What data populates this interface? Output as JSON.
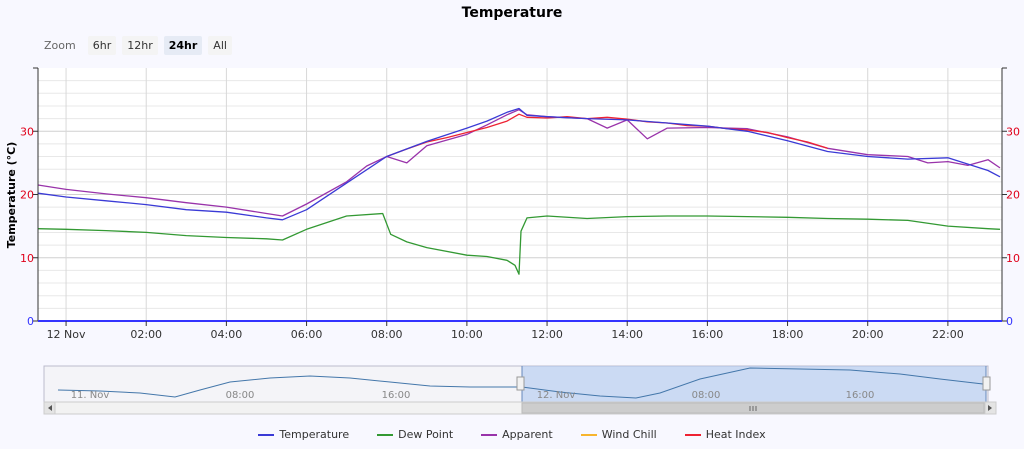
{
  "zoom": {
    "label": "Zoom",
    "buttons": [
      {
        "label": "6hr",
        "active": false
      },
      {
        "label": "12hr",
        "active": false
      },
      {
        "label": "24hr",
        "active": true
      },
      {
        "label": "All",
        "active": false
      }
    ]
  },
  "chart_data": {
    "type": "line",
    "title": "Temperature",
    "ylabel": "Temperature (°C)",
    "ylim": [
      0,
      40
    ],
    "yticks": [
      0,
      10,
      20,
      30
    ],
    "x_range": [
      "11/12 00:00",
      "11/12 23:20"
    ],
    "xticks": [
      "12 Nov",
      "02:00",
      "04:00",
      "06:00",
      "08:00",
      "10:00",
      "12:00",
      "14:00",
      "16:00",
      "18:00",
      "20:00",
      "22:00"
    ],
    "legend_position": "bottom",
    "series": [
      {
        "name": "Temperature",
        "color": "#3a3ad6",
        "x": [
          -0.7,
          0,
          1,
          2,
          3,
          4,
          5,
          5.4,
          6,
          7,
          8,
          9,
          10,
          10.5,
          11,
          11.3,
          11.5,
          12,
          13,
          14,
          15,
          16,
          17,
          18,
          19,
          20,
          21,
          22,
          23,
          23.3
        ],
        "y": [
          20.2,
          19.6,
          19,
          18.4,
          17.6,
          17.2,
          16.3,
          16,
          17.6,
          21.8,
          26,
          28.4,
          30.5,
          31.6,
          33,
          33.6,
          32.5,
          32.3,
          32,
          31.8,
          31.3,
          30.8,
          30,
          28.5,
          26.8,
          26,
          25.6,
          25.8,
          23.8,
          22.8
        ]
      },
      {
        "name": "Dew Point",
        "color": "#339933",
        "x": [
          -0.7,
          0,
          1,
          2,
          3,
          4,
          5,
          5.4,
          6,
          7,
          7.9,
          8.1,
          8.5,
          9,
          10,
          10.5,
          11,
          11.2,
          11.3,
          11.35,
          11.5,
          12,
          13,
          14,
          15,
          16,
          17,
          18,
          19,
          20,
          21,
          22,
          23,
          23.3
        ],
        "y": [
          14.6,
          14.5,
          14.3,
          14,
          13.5,
          13.2,
          13,
          12.8,
          14.5,
          16.6,
          17,
          13.7,
          12.5,
          11.6,
          10.4,
          10.2,
          9.6,
          8.8,
          7.4,
          14.2,
          16.3,
          16.6,
          16.2,
          16.5,
          16.6,
          16.6,
          16.5,
          16.4,
          16.2,
          16.1,
          15.9,
          15,
          14.6,
          14.5
        ]
      },
      {
        "name": "Apparent",
        "color": "#9933aa",
        "x": [
          -0.7,
          0,
          1,
          2,
          3,
          4,
          5,
          5.4,
          6,
          7,
          7.5,
          8,
          8.5,
          9,
          10,
          10.5,
          11,
          11.3,
          11.5,
          12,
          13,
          13.5,
          14,
          14.5,
          15,
          16,
          17,
          18,
          19,
          20,
          21,
          21.5,
          22,
          22.5,
          23,
          23.3
        ],
        "y": [
          21.5,
          20.8,
          20.1,
          19.5,
          18.7,
          18,
          17,
          16.6,
          18.5,
          22,
          24.5,
          26,
          25,
          27.7,
          29.5,
          31,
          32.6,
          33.4,
          32.6,
          32.3,
          32,
          30.5,
          31.8,
          28.8,
          30.5,
          30.6,
          30.4,
          29.1,
          27.3,
          26.3,
          26,
          25,
          25.2,
          24.6,
          25.5,
          24.2
        ]
      },
      {
        "name": "Wind Chill",
        "color": "#f7b52e",
        "x": [],
        "y": []
      },
      {
        "name": "Heat Index",
        "color": "#ee2233",
        "x": [
          8,
          8.5,
          9,
          9.5,
          10,
          10.5,
          11,
          11.3,
          11.5,
          12,
          12.5,
          13,
          13.5,
          14,
          14.5,
          15,
          15.5,
          16,
          16.5,
          17,
          17.5,
          18,
          18.5,
          19
        ],
        "y": [
          26,
          27.2,
          28.3,
          29,
          29.8,
          30.6,
          31.6,
          32.7,
          32.2,
          32.1,
          32.3,
          32,
          32.2,
          31.9,
          31.5,
          31.3,
          30.9,
          30.8,
          30.4,
          30.2,
          29.8,
          29,
          28.3,
          27.3
        ]
      }
    ]
  },
  "navigator": {
    "labels": [
      "11. Nov",
      "08:00",
      "16:00",
      "12. Nov",
      "08:00",
      "16:00"
    ]
  }
}
